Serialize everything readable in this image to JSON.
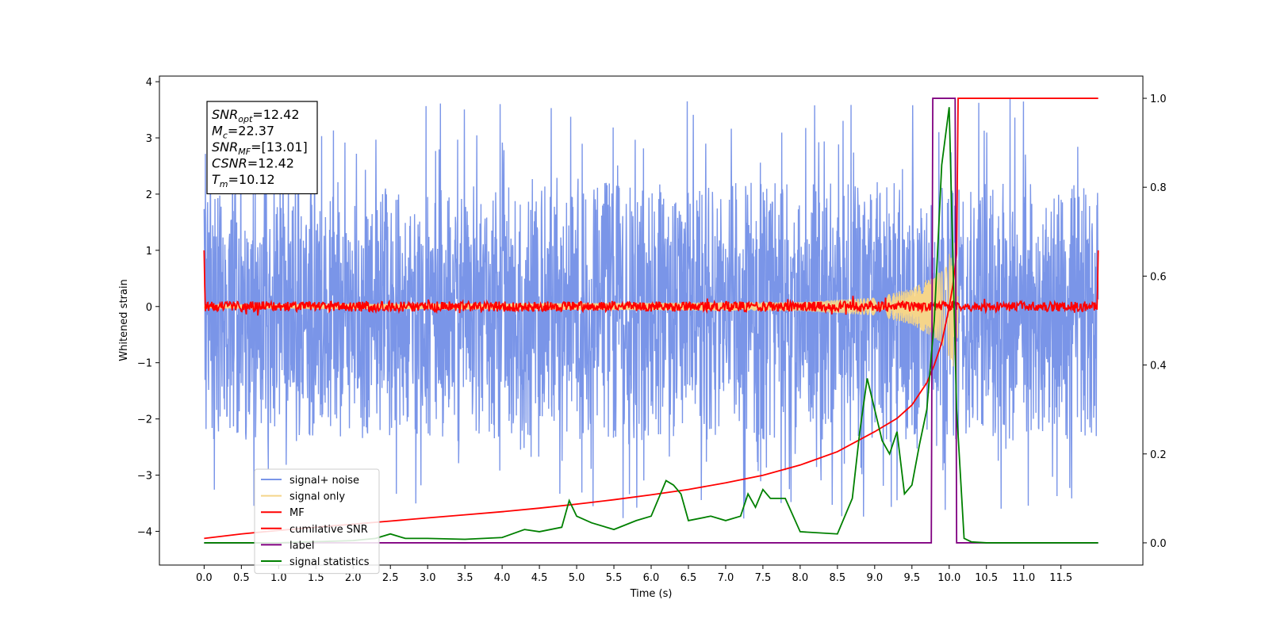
{
  "chart_data": {
    "type": "line",
    "xlabel": "Time (s)",
    "ylabel": "Whitened strain",
    "xlim": [
      -0.6,
      12.6
    ],
    "xticks": [
      0.0,
      0.5,
      1.0,
      1.5,
      2.0,
      2.5,
      3.0,
      3.5,
      4.0,
      4.5,
      5.0,
      5.5,
      6.0,
      6.5,
      7.0,
      7.5,
      8.0,
      8.5,
      9.0,
      9.5,
      10.0,
      10.5,
      11.0,
      11.5
    ],
    "xtick_labels": [
      "0.0",
      "0.5",
      "1.0",
      "1.5",
      "2.0",
      "2.5",
      "3.0",
      "3.5",
      "4.0",
      "4.5",
      "5.0",
      "5.5",
      "6.0",
      "6.5",
      "7.0",
      "7.5",
      "8.0",
      "8.5",
      "9.0",
      "9.5",
      "10.0",
      "10.5",
      "11.0",
      "11.5"
    ],
    "ylim_left": [
      -4.6,
      4.1
    ],
    "yticks_left": [
      -4,
      -3,
      -2,
      -1,
      0,
      1,
      2,
      3,
      4
    ],
    "ytick_labels_left": [
      "−4",
      "−3",
      "−2",
      "−1",
      "0",
      "1",
      "2",
      "3",
      "4"
    ],
    "ylim_right": [
      -0.05,
      1.05
    ],
    "yticks_right": [
      0.0,
      0.2,
      0.4,
      0.6,
      0.8,
      1.0
    ],
    "ytick_labels_right": [
      "0.0",
      "0.2",
      "0.4",
      "0.6",
      "0.8",
      "1.0"
    ],
    "grid": false,
    "legend_position": "lower-left",
    "info_box": {
      "position": "upper-left",
      "lines": [
        {
          "main": "SNR",
          "sub": "opt",
          "value": "=12.42"
        },
        {
          "main": "M",
          "sub": "c",
          "value": "=22.37"
        },
        {
          "main": "SNR",
          "sub": "MF",
          "value": "=[13.01]"
        },
        {
          "main": "CSNR",
          "sub": "",
          "value": "=12.42"
        },
        {
          "main": "T",
          "sub": "m",
          "value": "=10.12"
        }
      ]
    },
    "series": [
      {
        "name": "signal+ noise",
        "axis": "left",
        "color": "#7a95e8",
        "kind": "noise",
        "x_range": [
          0.0,
          12.0
        ],
        "envelope_upper": 1.3,
        "envelope_lower": -1.5,
        "spike_max": 3.7,
        "spike_min": -3.8
      },
      {
        "name": "signal only",
        "axis": "left",
        "color": "#f5d58a",
        "kind": "chirp",
        "x_range": [
          0.0,
          10.12
        ],
        "amplitude_points": [
          [
            0.0,
            0.02
          ],
          [
            8.0,
            0.05
          ],
          [
            9.0,
            0.1
          ],
          [
            9.5,
            0.2
          ],
          [
            9.9,
            0.4
          ],
          [
            10.1,
            0.75
          ],
          [
            10.12,
            0.1
          ]
        ]
      },
      {
        "name": "MF",
        "axis": "left",
        "color": "#ff0000",
        "kind": "mf",
        "x_range": [
          0.0,
          12.0
        ],
        "start_value": 1.0,
        "end_value": 1.0,
        "noise_amplitude": 0.09
      },
      {
        "name": "cumilative SNR",
        "axis": "right",
        "color": "#ff0000",
        "x": [
          0.0,
          0.5,
          1.0,
          1.5,
          2.0,
          2.5,
          3.0,
          3.5,
          4.0,
          4.5,
          5.0,
          5.5,
          6.0,
          6.5,
          7.0,
          7.5,
          8.0,
          8.5,
          9.0,
          9.3,
          9.5,
          9.7,
          9.8,
          9.9,
          10.0,
          10.05,
          10.1,
          10.12,
          10.15,
          11.0,
          11.5,
          12.0
        ],
        "y": [
          0.01,
          0.02,
          0.028,
          0.035,
          0.042,
          0.049,
          0.056,
          0.063,
          0.07,
          0.078,
          0.087,
          0.097,
          0.108,
          0.12,
          0.135,
          0.152,
          0.175,
          0.205,
          0.25,
          0.28,
          0.31,
          0.36,
          0.4,
          0.45,
          0.53,
          0.58,
          0.65,
          1.0,
          1.0,
          1.0,
          1.0,
          1.0
        ]
      },
      {
        "name": "label",
        "axis": "right",
        "color": "#800080",
        "x": [
          0.0,
          9.76,
          9.78,
          10.08,
          10.1,
          12.0
        ],
        "y": [
          0,
          0,
          1,
          1,
          0,
          0
        ]
      },
      {
        "name": "signal statistics",
        "axis": "right",
        "color": "#008000",
        "x": [
          0.0,
          1.0,
          2.0,
          2.3,
          2.5,
          2.7,
          3.0,
          3.5,
          4.0,
          4.3,
          4.5,
          4.8,
          4.9,
          5.0,
          5.2,
          5.5,
          5.8,
          6.0,
          6.2,
          6.3,
          6.4,
          6.5,
          6.8,
          7.0,
          7.2,
          7.3,
          7.4,
          7.5,
          7.6,
          7.8,
          8.0,
          8.5,
          8.7,
          8.8,
          8.9,
          9.0,
          9.1,
          9.2,
          9.3,
          9.4,
          9.5,
          9.6,
          9.7,
          9.8,
          9.9,
          10.0,
          10.1,
          10.2,
          10.3,
          10.5,
          11.0,
          11.5,
          12.0
        ],
        "y": [
          0.0,
          0.0,
          0.005,
          0.01,
          0.02,
          0.01,
          0.01,
          0.008,
          0.012,
          0.03,
          0.025,
          0.035,
          0.095,
          0.06,
          0.045,
          0.03,
          0.05,
          0.06,
          0.14,
          0.13,
          0.11,
          0.05,
          0.06,
          0.05,
          0.06,
          0.11,
          0.08,
          0.12,
          0.1,
          0.1,
          0.025,
          0.02,
          0.1,
          0.25,
          0.37,
          0.3,
          0.23,
          0.2,
          0.25,
          0.11,
          0.13,
          0.22,
          0.3,
          0.5,
          0.85,
          0.98,
          0.3,
          0.01,
          0.002,
          0.0,
          0.0,
          0.0,
          0.0
        ]
      }
    ]
  }
}
